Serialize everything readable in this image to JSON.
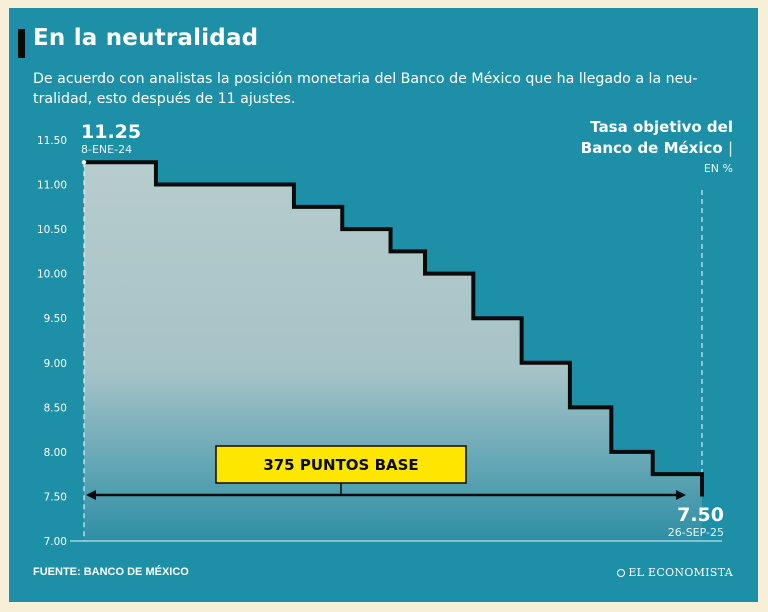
{
  "header": {
    "title": "En la neutralidad",
    "subtitle": "De acuerdo con analistas la posición monetaria del Banco de México que ha llegado a la neu-tralidad, esto después de 11 ajustes."
  },
  "legend": {
    "title_line1": "Tasa objetivo del",
    "title_line2": "Banco de México",
    "unit": "EN %"
  },
  "chart_data": {
    "type": "line",
    "step": true,
    "ylabel": "",
    "ylim": [
      7.0,
      11.5
    ],
    "y_ticks": [
      "11.50",
      "11.00",
      "10.50",
      "10.00",
      "9.50",
      "9.00",
      "8.50",
      "8.00",
      "7.50",
      "7.00"
    ],
    "x_range": [
      "2024-01-08",
      "2025-09-26"
    ],
    "series": [
      {
        "values": [
          {
            "x": "2024-01-08",
            "y": 11.25
          },
          {
            "x": "2024-03-21",
            "y": 11.0
          },
          {
            "x": "2024-08-08",
            "y": 10.75
          },
          {
            "x": "2024-09-26",
            "y": 10.5
          },
          {
            "x": "2024-11-14",
            "y": 10.25
          },
          {
            "x": "2024-12-19",
            "y": 10.0
          },
          {
            "x": "2025-02-06",
            "y": 9.5
          },
          {
            "x": "2025-03-27",
            "y": 9.0
          },
          {
            "x": "2025-05-15",
            "y": 8.5
          },
          {
            "x": "2025-06-26",
            "y": 8.0
          },
          {
            "x": "2025-08-07",
            "y": 7.75
          },
          {
            "x": "2025-09-26",
            "y": 7.5
          }
        ]
      }
    ],
    "annotations": {
      "start_value": "11.25",
      "start_date": "8-ENE-24",
      "end_value": "7.50",
      "end_date": "26-SEP-25",
      "callout": "375 PUNTOS BASE"
    }
  },
  "footer": {
    "source": "FUENTE: BANCO DE MÉXICO",
    "brand": "EL ECONOMISTA"
  },
  "colors": {
    "background": "#1d8fa7",
    "outer": "#f8efd9",
    "line": "#0b0b0b",
    "callout": "#ffe600",
    "area_top": "#b7cccd",
    "area_bottom": "#2e8fa5"
  }
}
